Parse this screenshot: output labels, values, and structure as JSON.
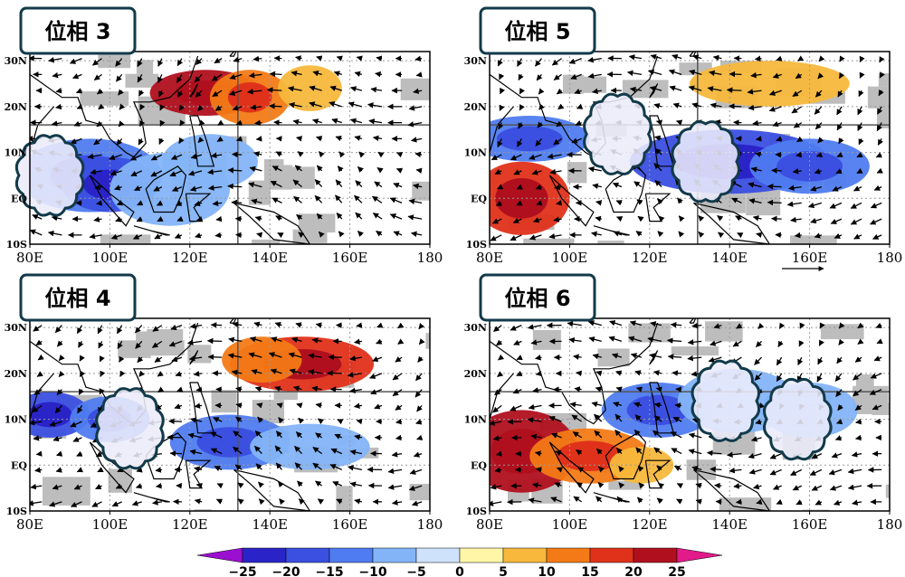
{
  "chart_data": {
    "type": "heatmap",
    "description_units": "OLR anomaly shading with wind vectors",
    "x_ticks": [
      "80E",
      "100E",
      "120E",
      "140E",
      "160E",
      "180"
    ],
    "y_ticks": [
      "30N",
      "20N",
      "10N",
      "EQ",
      "10S"
    ],
    "x_range": [
      80,
      180
    ],
    "y_range": [
      -10,
      32
    ],
    "vector_reference_label": "",
    "panels": [
      {
        "title": "位相 3",
        "blobs": [
          {
            "lon": 124,
            "lat": 23,
            "w": 14,
            "h": 5,
            "value": 20
          },
          {
            "lon": 135,
            "lat": 22,
            "w": 10,
            "h": 6,
            "value": 12
          },
          {
            "lon": 150,
            "lat": 24,
            "w": 8,
            "h": 5,
            "value": 7
          },
          {
            "lon": 95,
            "lat": 5,
            "w": 18,
            "h": 8,
            "value": -15
          },
          {
            "lon": 100,
            "lat": 3,
            "w": 12,
            "h": 6,
            "value": -20
          },
          {
            "lon": 115,
            "lat": 2,
            "w": 15,
            "h": 8,
            "value": -10
          },
          {
            "lon": 125,
            "lat": 8,
            "w": 12,
            "h": 6,
            "value": -7
          }
        ],
        "clouds": [
          {
            "lon": 85,
            "lat": 5
          }
        ]
      },
      {
        "title": "位相 4",
        "blobs": [
          {
            "lon": 148,
            "lat": 22,
            "w": 18,
            "h": 6,
            "value": 15
          },
          {
            "lon": 138,
            "lat": 23,
            "w": 10,
            "h": 5,
            "value": 10
          },
          {
            "lon": 85,
            "lat": 11,
            "w": 10,
            "h": 5,
            "value": -18
          },
          {
            "lon": 100,
            "lat": 10,
            "w": 10,
            "h": 5,
            "value": -12
          },
          {
            "lon": 130,
            "lat": 5,
            "w": 15,
            "h": 6,
            "value": -15
          },
          {
            "lon": 150,
            "lat": 4,
            "w": 15,
            "h": 5,
            "value": -8
          }
        ],
        "clouds": [
          {
            "lon": 105,
            "lat": 8
          }
        ]
      },
      {
        "title": "位相 5",
        "blobs": [
          {
            "lon": 150,
            "lat": 25,
            "w": 20,
            "h": 5,
            "value": 8
          },
          {
            "lon": 88,
            "lat": 0,
            "w": 12,
            "h": 8,
            "value": 18
          },
          {
            "lon": 90,
            "lat": 13,
            "w": 15,
            "h": 5,
            "value": -15
          },
          {
            "lon": 140,
            "lat": 8,
            "w": 25,
            "h": 7,
            "value": -18
          },
          {
            "lon": 160,
            "lat": 7,
            "w": 15,
            "h": 6,
            "value": -12
          }
        ],
        "clouds": [
          {
            "lon": 112,
            "lat": 14
          },
          {
            "lon": 134,
            "lat": 8
          }
        ]
      },
      {
        "title": "位相 6",
        "blobs": [
          {
            "lon": 88,
            "lat": 3,
            "w": 14,
            "h": 9,
            "value": 22
          },
          {
            "lon": 105,
            "lat": 2,
            "w": 15,
            "h": 6,
            "value": 12
          },
          {
            "lon": 118,
            "lat": 0,
            "w": 8,
            "h": 4,
            "value": 7
          },
          {
            "lon": 122,
            "lat": 12,
            "w": 14,
            "h": 6,
            "value": -15
          },
          {
            "lon": 142,
            "lat": 14,
            "w": 15,
            "h": 7,
            "value": -10
          },
          {
            "lon": 160,
            "lat": 12,
            "w": 12,
            "h": 6,
            "value": -7
          }
        ],
        "clouds": [
          {
            "lon": 139,
            "lat": 14
          },
          {
            "lon": 157,
            "lat": 10
          }
        ]
      }
    ],
    "colorbar": {
      "labels": [
        "−25",
        "−20",
        "−15",
        "−10",
        "−5",
        "0",
        "5",
        "10",
        "15",
        "20",
        "25"
      ],
      "colors": [
        "#2a24c8",
        "#3b4fe0",
        "#4f7cf0",
        "#84b4f8",
        "#cfe2fc",
        "#fff6a8",
        "#f7b83c",
        "#f37a16",
        "#e0321a",
        "#b0101e"
      ],
      "min_color": "#9b10d0",
      "max_color": "#e21a8a"
    }
  }
}
